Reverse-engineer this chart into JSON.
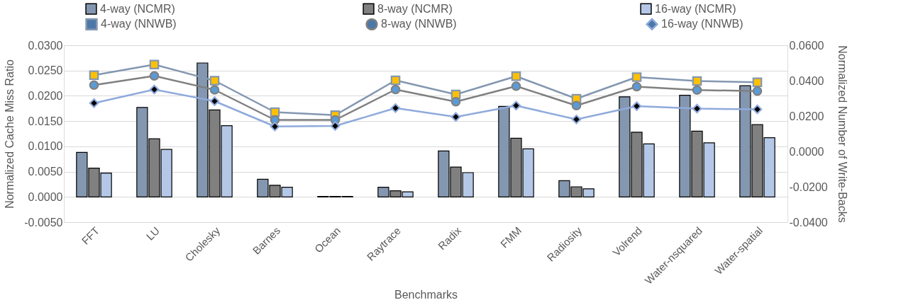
{
  "chart_data": {
    "type": "bar",
    "xlabel": "Benchmarks",
    "ylabel": "Normalized Cache Miss Ratio",
    "y2label": "Normalized Number of Write-Backs",
    "categories": [
      "FFT",
      "LU",
      "Cholesky",
      "Barnes",
      "Ocean",
      "Raytrace",
      "Radix",
      "FMM",
      "Radiosity",
      "Volrend",
      "Water-nsquared",
      "Water-spatial"
    ],
    "series": [
      {
        "name": "4-way (NCMR)",
        "color": "#8497b0",
        "values": [
          0.0088,
          0.0177,
          0.0265,
          0.0035,
          0.0001,
          0.0019,
          0.0091,
          0.0179,
          0.0032,
          0.0198,
          0.0201,
          0.022
        ]
      },
      {
        "name": "8-way (NCMR)",
        "color": "#808080",
        "values": [
          0.0057,
          0.0115,
          0.0172,
          0.0023,
          0.0001,
          0.0012,
          0.0059,
          0.0116,
          0.002,
          0.0128,
          0.013,
          0.0143
        ]
      },
      {
        "name": "16-way (NCMR)",
        "color": "#b4c7e7",
        "values": [
          0.0047,
          0.0094,
          0.0141,
          0.0019,
          0.0001,
          0.001,
          0.0048,
          0.0095,
          0.0016,
          0.0105,
          0.0107,
          0.0117
        ]
      },
      {
        "name": "4-way (NNWB)",
        "type": "line",
        "axis": "y2",
        "marker": "square",
        "color": "#8497b0",
        "values": [
          0.0431,
          0.0491,
          0.04,
          0.0222,
          0.0205,
          0.0402,
          0.0322,
          0.0425,
          0.0298,
          0.042,
          0.0398,
          0.0391
        ]
      },
      {
        "name": "8-way (NNWB)",
        "type": "line",
        "axis": "y2",
        "marker": "circle",
        "color": "#808080",
        "values": [
          0.0375,
          0.0427,
          0.0348,
          0.0178,
          0.0178,
          0.035,
          0.0281,
          0.0369,
          0.0259,
          0.0366,
          0.0347,
          0.0341
        ]
      },
      {
        "name": "16-way (NNWB)",
        "type": "line",
        "axis": "y2",
        "marker": "diamond",
        "color": "#8faadc",
        "values": [
          0.0273,
          0.035,
          0.0284,
          0.0141,
          0.0144,
          0.0245,
          0.0195,
          0.0259,
          0.0181,
          0.0256,
          0.0242,
          0.0238
        ]
      }
    ],
    "ylim": [
      -0.005,
      0.03
    ],
    "yticks": [
      {
        "value": -0.005,
        "label": "-0.0050"
      },
      {
        "value": 0,
        "label": "0.0000"
      },
      {
        "value": 0.005,
        "label": "0.0050"
      },
      {
        "value": 0.01,
        "label": "0.0100"
      },
      {
        "value": 0.015,
        "label": "0.0150"
      },
      {
        "value": 0.02,
        "label": "0.0200"
      },
      {
        "value": 0.025,
        "label": "0.0250"
      },
      {
        "value": 0.03,
        "label": "0.0300"
      }
    ],
    "y2lim": [
      -0.04,
      0.06
    ],
    "y2ticks": [
      {
        "value": -0.04,
        "label": "-0.0400"
      },
      {
        "value": -0.02,
        "label": "-0.0200"
      },
      {
        "value": 0,
        "label": "0.0000"
      },
      {
        "value": 0.02,
        "label": "0.0200"
      },
      {
        "value": 0.04,
        "label": "0.0400"
      },
      {
        "value": 0.06,
        "label": "0.0600"
      }
    ],
    "grid": "y",
    "legend": "top"
  }
}
